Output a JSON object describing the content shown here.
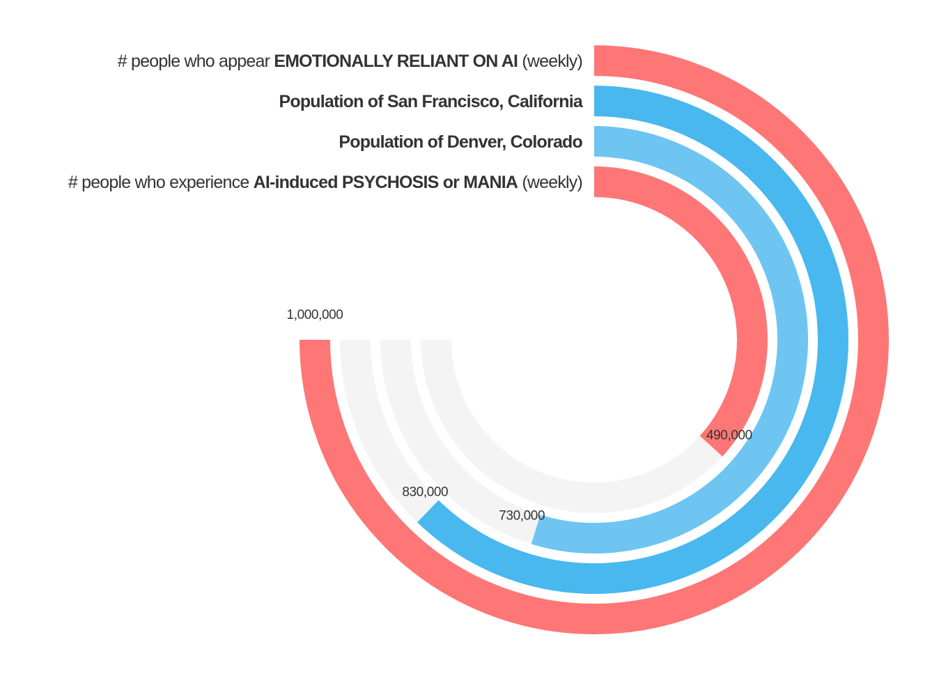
{
  "chart_data": {
    "type": "radial_bar",
    "scale_max": 1000000,
    "track_color": "#f4f4f4",
    "series": [
      {
        "id": "reliant",
        "value": 1000000,
        "value_label": "1,000,000",
        "color": "#ff7676",
        "label_parts": [
          {
            "text": "# people who appear ",
            "bold": false
          },
          {
            "text": "EMOTIONALLY RELIANT ON AI",
            "bold": true
          },
          {
            "text": " (weekly)",
            "bold": false
          }
        ]
      },
      {
        "id": "sf",
        "value": 830000,
        "value_label": "830,000",
        "color": "#48b8ef",
        "label_parts": [
          {
            "text": "Population of San Francisco, California",
            "bold": true
          }
        ]
      },
      {
        "id": "denver",
        "value": 730000,
        "value_label": "730,000",
        "color": "#6ec5f2",
        "label_parts": [
          {
            "text": "Population of Denver, Colorado",
            "bold": true
          }
        ]
      },
      {
        "id": "psychosis",
        "value": 490000,
        "value_label": "490,000",
        "color": "#ff7676",
        "label_parts": [
          {
            "text": "# people who experience ",
            "bold": false
          },
          {
            "text": "AI-induced PSYCHOSIS or MANIA",
            "bold": true
          },
          {
            "text": " (weekly)",
            "bold": false
          }
        ]
      }
    ]
  }
}
